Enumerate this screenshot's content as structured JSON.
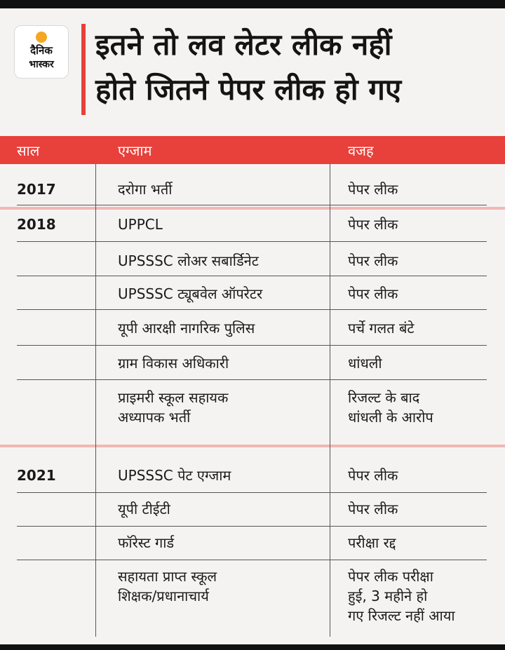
{
  "logo": {
    "line1": "दैनिक",
    "line2": "भास्कर"
  },
  "headline": {
    "line1": "इतने तो लव लेटर लीक नहीं",
    "line2": "होते जितने पेपर लीक हो गए"
  },
  "table": {
    "headers": [
      "साल",
      "एग्जाम",
      "वजह"
    ],
    "rows": [
      {
        "year": "2017",
        "exam": [
          "दरोगा भर्ती"
        ],
        "reason": [
          "पेपर लीक"
        ]
      },
      {
        "year": "2018",
        "exam": [
          "UPPCL"
        ],
        "reason": [
          "पेपर लीक"
        ]
      },
      {
        "year": "",
        "exam": [
          "UPSSSC लोअर सबार्डिनेट"
        ],
        "reason": [
          "पेपर लीक"
        ]
      },
      {
        "year": "",
        "exam": [
          "UPSSSC ट्यूबवेल ऑपरेटर"
        ],
        "reason": [
          "पेपर लीक"
        ]
      },
      {
        "year": "",
        "exam": [
          "यूपी आरक्षी नागरिक पुलिस"
        ],
        "reason": [
          "पर्चे गलत बंटे"
        ]
      },
      {
        "year": "",
        "exam": [
          "ग्राम विकास अधिकारी"
        ],
        "reason": [
          "धांधली"
        ]
      },
      {
        "year": "",
        "exam": [
          "प्राइमरी स्कूल सहायक",
          "अध्यापक भर्ती"
        ],
        "reason": [
          "रिजल्ट के बाद",
          "धांधली के आरोप"
        ]
      },
      {
        "year": "2021",
        "exam": [
          "UPSSSC पेट एग्जाम"
        ],
        "reason": [
          "पेपर लीक"
        ]
      },
      {
        "year": "",
        "exam": [
          "यूपी टीईटी"
        ],
        "reason": [
          "पेपर लीक"
        ]
      },
      {
        "year": "",
        "exam": [
          "फॉरेस्ट गार्ड"
        ],
        "reason": [
          "परीक्षा रद्द"
        ]
      },
      {
        "year": "",
        "exam": [
          "सहायता प्राप्त स्कूल",
          "शिक्षक/प्रधानाचार्य"
        ],
        "reason": [
          "पेपर लीक परीक्षा",
          "हुई, 3 महीने हो",
          "गए रिजल्ट नहीं आया"
        ]
      }
    ]
  }
}
